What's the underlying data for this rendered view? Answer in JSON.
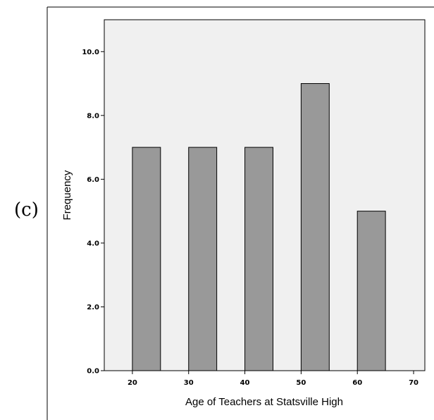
{
  "panel_label": "(c)",
  "chart_data": {
    "type": "bar",
    "title": "",
    "xlabel": "Age of Teachers at Statsville High",
    "ylabel": "Frequency",
    "xlim": [
      15,
      72
    ],
    "ylim": [
      0,
      11
    ],
    "x_ticks": [
      "20",
      "30",
      "40",
      "50",
      "60",
      "70"
    ],
    "y_ticks": [
      "0.0",
      "2.0",
      "4.0",
      "6.0",
      "8.0",
      "10.0"
    ],
    "bars": [
      {
        "x_start": 20,
        "x_end": 25,
        "value": 7
      },
      {
        "x_start": 30,
        "x_end": 35,
        "value": 7
      },
      {
        "x_start": 40,
        "x_end": 45,
        "value": 7
      },
      {
        "x_start": 50,
        "x_end": 55,
        "value": 9
      },
      {
        "x_start": 60,
        "x_end": 65,
        "value": 5
      }
    ],
    "colors": {
      "bar_fill": "#999999",
      "plot_background": "#f0f0f0",
      "stroke": "#000000"
    },
    "grid": false,
    "legend": "none"
  }
}
